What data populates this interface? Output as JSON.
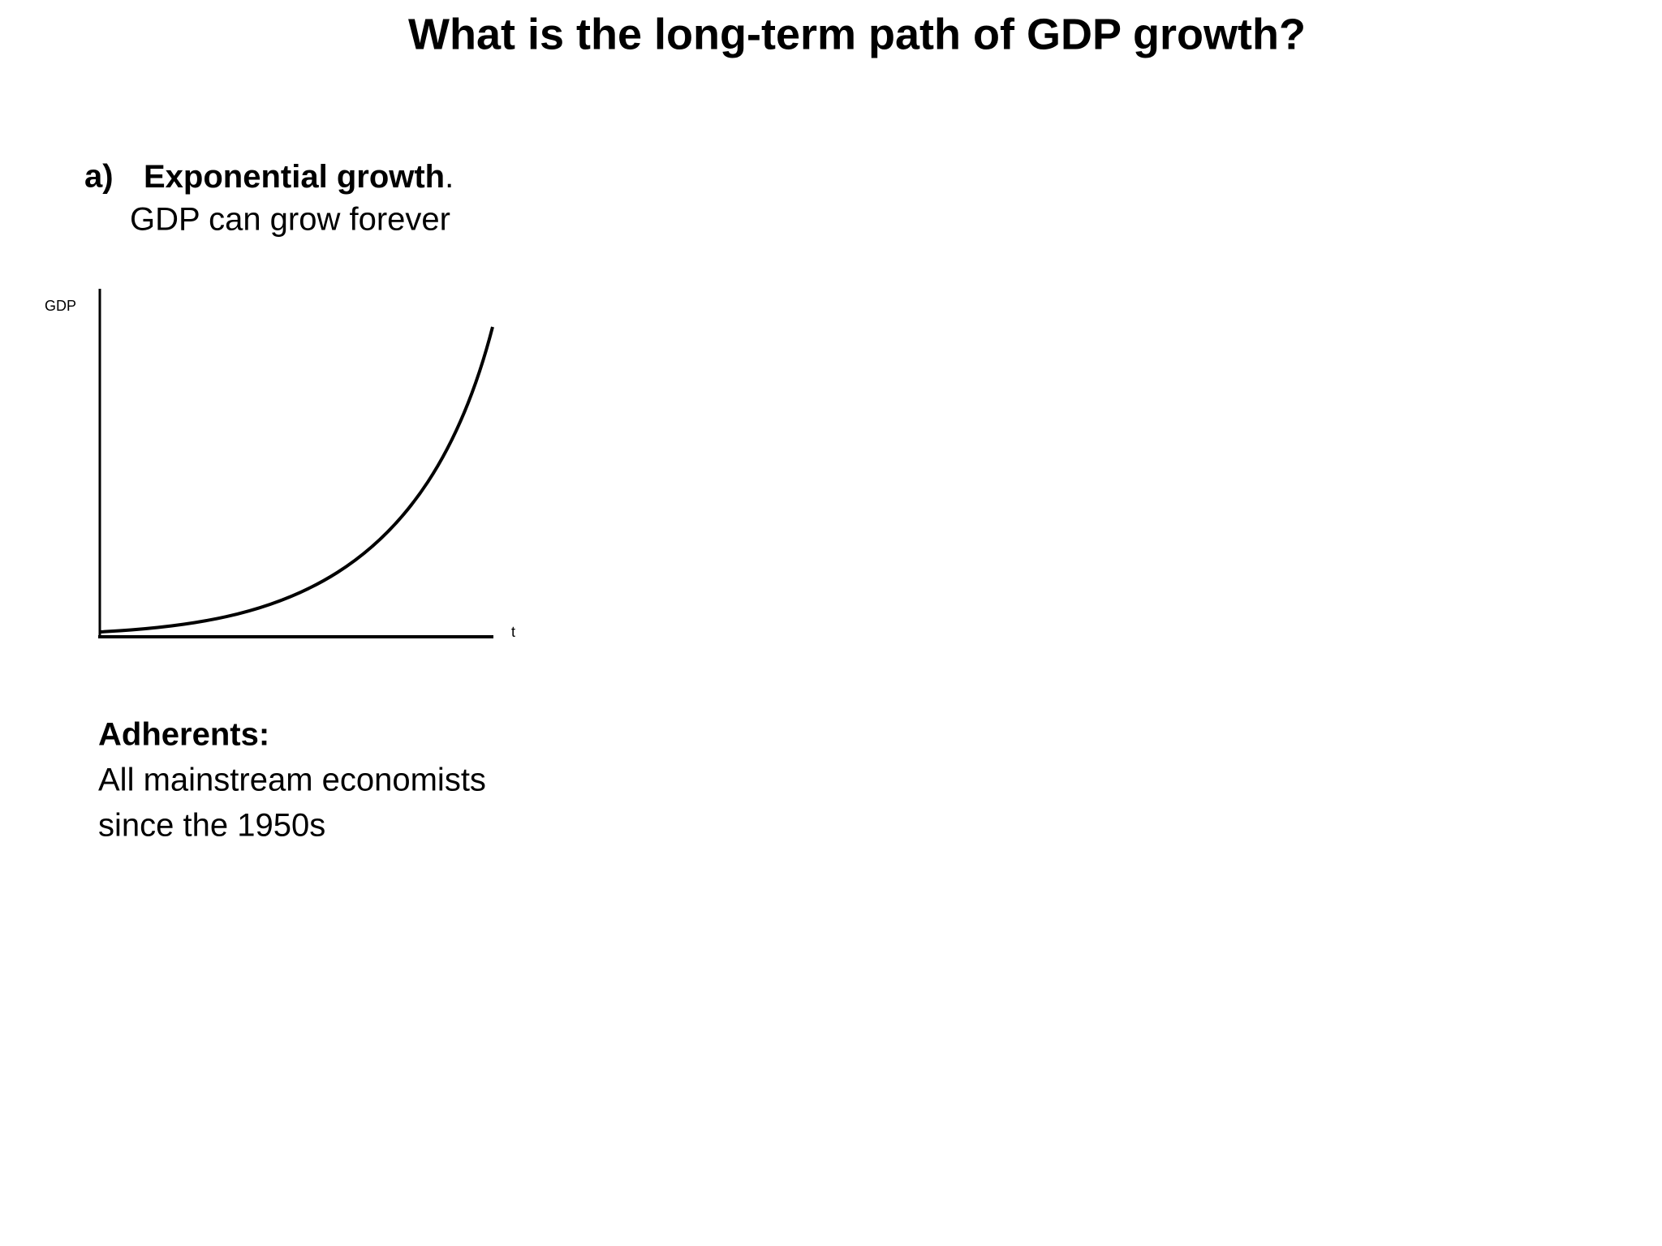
{
  "header": {
    "title": "What is the long-term path of GDP growth?"
  },
  "section": {
    "marker": "a)",
    "heading": "Exponential growth",
    "heading_end": ".",
    "subtitle": "GDP can grow forever"
  },
  "diagram": {
    "y_axis_label": "GDP",
    "x_axis_label": "t"
  },
  "adherents": {
    "heading": "Adherents:",
    "lines": [
      "All mainstream economists",
      "since the 1950s"
    ]
  }
}
